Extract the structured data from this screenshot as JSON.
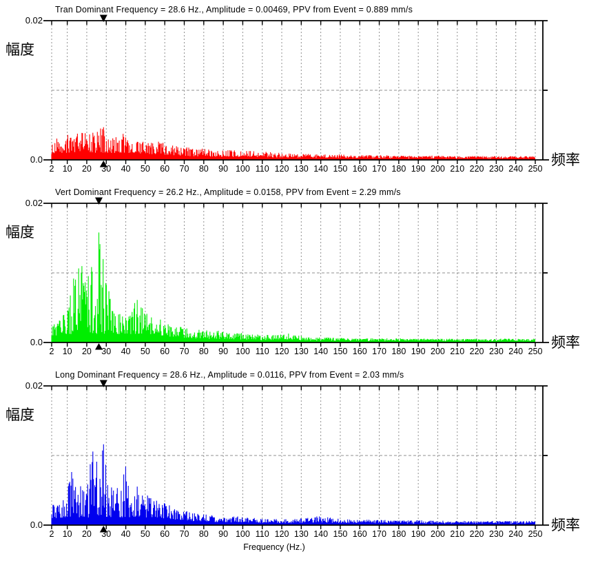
{
  "page": {
    "background": "#ffffff",
    "description": "Three stacked FFT frequency spectra (Tran / Vert / Long components) of a blasting vibration event"
  },
  "axes": {
    "y_max_label": "0.02",
    "y_min_label": "0.0",
    "y_left_label": "幅度",
    "x_right_label": "频率",
    "x_axis_title": "Frequency (Hz.)",
    "x_ticks": [
      2,
      10,
      20,
      30,
      40,
      50,
      60,
      70,
      80,
      90,
      100,
      110,
      120,
      130,
      140,
      150,
      160,
      170,
      180,
      190,
      200,
      210,
      220,
      230,
      240,
      250
    ],
    "xlim": [
      2,
      250
    ],
    "ylim": [
      0,
      0.02
    ],
    "y_gridline_value": 0.01,
    "grid_on": true,
    "grid_color": "#8f8f8f",
    "axis_color": "#000000",
    "marker_color": "#000000"
  },
  "chart_data": [
    {
      "type": "area",
      "id": "tran",
      "component": "Tran",
      "title": "Tran Dominant Frequency = 28.6 Hz., Amplitude = 0.00469,  PPV from Event = 0.889 mm/s",
      "dominant_frequency_hz": 28.6,
      "peak_amplitude": 0.00469,
      "ppv_mm_s": 0.889,
      "color": "#ff0000",
      "noise_floor": 0.001,
      "envelope": [
        [
          2,
          0.0026
        ],
        [
          4,
          0.003
        ],
        [
          6,
          0.0034
        ],
        [
          8,
          0.0038
        ],
        [
          10,
          0.004
        ],
        [
          13,
          0.0042
        ],
        [
          16,
          0.0038
        ],
        [
          19,
          0.0042
        ],
        [
          22,
          0.004
        ],
        [
          25,
          0.0043
        ],
        [
          28.6,
          0.00469
        ],
        [
          30,
          0.004
        ],
        [
          32,
          0.0032
        ],
        [
          35,
          0.0038
        ],
        [
          38,
          0.004
        ],
        [
          40,
          0.0036
        ],
        [
          43,
          0.003
        ],
        [
          46,
          0.0028
        ],
        [
          50,
          0.0027
        ],
        [
          54,
          0.0028
        ],
        [
          58,
          0.0026
        ],
        [
          62,
          0.0023
        ],
        [
          66,
          0.0021
        ],
        [
          70,
          0.0019
        ],
        [
          75,
          0.0017
        ],
        [
          80,
          0.0016
        ],
        [
          85,
          0.0015
        ],
        [
          90,
          0.0015
        ],
        [
          95,
          0.0014
        ],
        [
          100,
          0.0013
        ],
        [
          105,
          0.0013
        ],
        [
          110,
          0.0012
        ],
        [
          115,
          0.0011
        ],
        [
          120,
          0.0011
        ],
        [
          125,
          0.001
        ],
        [
          130,
          0.0009
        ],
        [
          140,
          0.0008
        ],
        [
          150,
          0.0008
        ],
        [
          160,
          0.0007
        ],
        [
          170,
          0.0007
        ],
        [
          180,
          0.0006
        ],
        [
          190,
          0.0006
        ],
        [
          200,
          0.0006
        ],
        [
          210,
          0.0005
        ],
        [
          220,
          0.0005
        ],
        [
          230,
          0.0005
        ],
        [
          240,
          0.0005
        ],
        [
          250,
          0.0005
        ]
      ]
    },
    {
      "type": "area",
      "id": "vert",
      "component": "Vert",
      "title": "Vert Dominant Frequency = 26.2 Hz., Amplitude = 0.0158,  PPV from Event = 2.29 mm/s",
      "dominant_frequency_hz": 26.2,
      "peak_amplitude": 0.0158,
      "ppv_mm_s": 2.29,
      "color": "#00ee00",
      "noise_floor": 0.0012,
      "envelope": [
        [
          2,
          0.0028
        ],
        [
          4,
          0.0032
        ],
        [
          6,
          0.0036
        ],
        [
          8,
          0.0045
        ],
        [
          10,
          0.006
        ],
        [
          12,
          0.0085
        ],
        [
          14,
          0.0125
        ],
        [
          15.5,
          0.015
        ],
        [
          17,
          0.014
        ],
        [
          18,
          0.0115
        ],
        [
          20,
          0.009
        ],
        [
          22,
          0.0105
        ],
        [
          24,
          0.0135
        ],
        [
          26.2,
          0.0158
        ],
        [
          27.5,
          0.0145
        ],
        [
          29,
          0.011
        ],
        [
          31,
          0.008
        ],
        [
          33,
          0.0058
        ],
        [
          35,
          0.0047
        ],
        [
          37,
          0.0042
        ],
        [
          39,
          0.004
        ],
        [
          41,
          0.0044
        ],
        [
          43,
          0.0052
        ],
        [
          45,
          0.0062
        ],
        [
          47,
          0.0066
        ],
        [
          49,
          0.006
        ],
        [
          51,
          0.005
        ],
        [
          53,
          0.0043
        ],
        [
          56,
          0.0037
        ],
        [
          59,
          0.0032
        ],
        [
          62,
          0.0028
        ],
        [
          66,
          0.0025
        ],
        [
          70,
          0.0022
        ],
        [
          75,
          0.0019
        ],
        [
          80,
          0.0018
        ],
        [
          85,
          0.0017
        ],
        [
          90,
          0.0017
        ],
        [
          95,
          0.0016
        ],
        [
          100,
          0.0014
        ],
        [
          105,
          0.0012
        ],
        [
          110,
          0.0011
        ],
        [
          115,
          0.0011
        ],
        [
          122,
          0.0014
        ],
        [
          128,
          0.001
        ],
        [
          135,
          0.0008
        ],
        [
          145,
          0.0007
        ],
        [
          155,
          0.0006
        ],
        [
          165,
          0.0006
        ],
        [
          180,
          0.0006
        ],
        [
          200,
          0.0005
        ],
        [
          225,
          0.0005
        ],
        [
          250,
          0.0005
        ]
      ]
    },
    {
      "type": "area",
      "id": "long",
      "component": "Long",
      "title": "Long Dominant Frequency = 28.6 Hz., Amplitude = 0.0116,  PPV from Event = 2.03 mm/s",
      "dominant_frequency_hz": 28.6,
      "peak_amplitude": 0.0116,
      "ppv_mm_s": 2.03,
      "color": "#0000ee",
      "noise_floor": 0.0011,
      "envelope": [
        [
          2,
          0.0028
        ],
        [
          4,
          0.0032
        ],
        [
          6,
          0.003
        ],
        [
          8,
          0.0038
        ],
        [
          10,
          0.0048
        ],
        [
          12,
          0.0078
        ],
        [
          13,
          0.0085
        ],
        [
          14,
          0.0068
        ],
        [
          16,
          0.006
        ],
        [
          18,
          0.007
        ],
        [
          20,
          0.0082
        ],
        [
          22,
          0.01
        ],
        [
          23,
          0.0112
        ],
        [
          24,
          0.0095
        ],
        [
          26,
          0.0088
        ],
        [
          27.5,
          0.01
        ],
        [
          28.6,
          0.0116
        ],
        [
          30,
          0.0082
        ],
        [
          32,
          0.0062
        ],
        [
          34,
          0.005
        ],
        [
          36,
          0.0058
        ],
        [
          38,
          0.0088
        ],
        [
          39.5,
          0.0092
        ],
        [
          41,
          0.0068
        ],
        [
          43,
          0.0058
        ],
        [
          45,
          0.0062
        ],
        [
          47,
          0.0052
        ],
        [
          49,
          0.0046
        ],
        [
          51,
          0.0044
        ],
        [
          53,
          0.004
        ],
        [
          56,
          0.0036
        ],
        [
          59,
          0.0033
        ],
        [
          62,
          0.0029
        ],
        [
          65,
          0.0026
        ],
        [
          68,
          0.0024
        ],
        [
          72,
          0.0021
        ],
        [
          76,
          0.0018
        ],
        [
          80,
          0.0016
        ],
        [
          85,
          0.0014
        ],
        [
          90,
          0.0013
        ],
        [
          95,
          0.0013
        ],
        [
          100,
          0.0012
        ],
        [
          105,
          0.0011
        ],
        [
          110,
          0.001
        ],
        [
          118,
          0.0009
        ],
        [
          125,
          0.0009
        ],
        [
          132,
          0.001
        ],
        [
          138,
          0.0013
        ],
        [
          144,
          0.0011
        ],
        [
          150,
          0.0009
        ],
        [
          160,
          0.0008
        ],
        [
          170,
          0.0008
        ],
        [
          180,
          0.0007
        ],
        [
          190,
          0.0007
        ],
        [
          200,
          0.0007
        ],
        [
          210,
          0.0006
        ],
        [
          220,
          0.0006
        ],
        [
          230,
          0.0006
        ],
        [
          240,
          0.0006
        ],
        [
          250,
          0.0006
        ]
      ]
    }
  ]
}
